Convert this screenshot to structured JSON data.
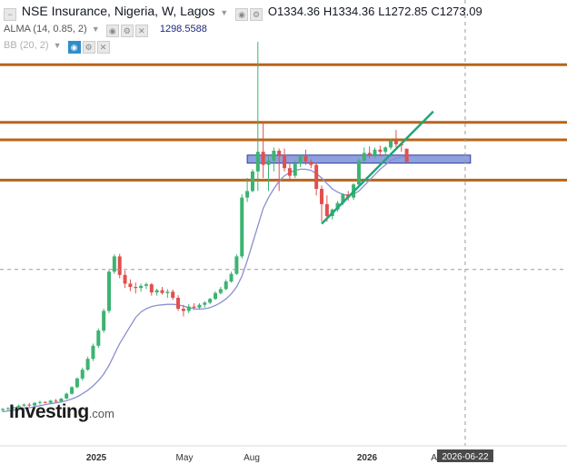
{
  "header": {
    "title": "NSE Insurance, Nigeria, W, Lagos",
    "open": "O1334.36",
    "high": "H1334.36",
    "low": "L1272.85",
    "close": "C1273.09",
    "alma_label": "ALMA (14, 0.85, 2)",
    "alma_value": "1298.5588",
    "bb_label": "BB (20, 2)"
  },
  "watermark": {
    "brand": "Investing",
    "suffix": ".com"
  },
  "colors": {
    "up": "#3cb371",
    "down": "#e0504e",
    "alma": "#8a8fd0",
    "hline": "#b8651a",
    "trend": "#20a67a",
    "zone": "#6b7fd3"
  },
  "chart_data": {
    "type": "candlestick",
    "title": "NSE Insurance, Nigeria, W, Lagos",
    "x_tick_labels": [
      "2025",
      "May",
      "Aug",
      "2026",
      "Apr",
      "2026-06-22"
    ],
    "y_range": [
      100,
      1850
    ],
    "candles": [
      {
        "o": 135,
        "h": 145,
        "l": 125,
        "c": 140
      },
      {
        "o": 140,
        "h": 148,
        "l": 132,
        "c": 144
      },
      {
        "o": 144,
        "h": 152,
        "l": 138,
        "c": 148
      },
      {
        "o": 148,
        "h": 160,
        "l": 143,
        "c": 155
      },
      {
        "o": 155,
        "h": 165,
        "l": 148,
        "c": 160
      },
      {
        "o": 160,
        "h": 168,
        "l": 150,
        "c": 156
      },
      {
        "o": 156,
        "h": 172,
        "l": 152,
        "c": 168
      },
      {
        "o": 168,
        "h": 178,
        "l": 160,
        "c": 172
      },
      {
        "o": 172,
        "h": 176,
        "l": 165,
        "c": 168
      },
      {
        "o": 168,
        "h": 182,
        "l": 164,
        "c": 178
      },
      {
        "o": 178,
        "h": 186,
        "l": 170,
        "c": 175
      },
      {
        "o": 175,
        "h": 190,
        "l": 172,
        "c": 188
      },
      {
        "o": 188,
        "h": 215,
        "l": 185,
        "c": 210
      },
      {
        "o": 210,
        "h": 245,
        "l": 205,
        "c": 240
      },
      {
        "o": 240,
        "h": 285,
        "l": 235,
        "c": 280
      },
      {
        "o": 280,
        "h": 330,
        "l": 270,
        "c": 320
      },
      {
        "o": 320,
        "h": 380,
        "l": 315,
        "c": 370
      },
      {
        "o": 370,
        "h": 440,
        "l": 360,
        "c": 430
      },
      {
        "o": 430,
        "h": 510,
        "l": 420,
        "c": 500
      },
      {
        "o": 500,
        "h": 600,
        "l": 490,
        "c": 590
      },
      {
        "o": 590,
        "h": 780,
        "l": 580,
        "c": 770
      },
      {
        "o": 770,
        "h": 850,
        "l": 760,
        "c": 840
      },
      {
        "o": 840,
        "h": 852,
        "l": 740,
        "c": 755
      },
      {
        "o": 755,
        "h": 775,
        "l": 695,
        "c": 715
      },
      {
        "o": 715,
        "h": 735,
        "l": 680,
        "c": 700
      },
      {
        "o": 700,
        "h": 720,
        "l": 670,
        "c": 695
      },
      {
        "o": 695,
        "h": 715,
        "l": 678,
        "c": 705
      },
      {
        "o": 705,
        "h": 720,
        "l": 690,
        "c": 712
      },
      {
        "o": 712,
        "h": 718,
        "l": 660,
        "c": 675
      },
      {
        "o": 675,
        "h": 692,
        "l": 660,
        "c": 685
      },
      {
        "o": 685,
        "h": 700,
        "l": 665,
        "c": 672
      },
      {
        "o": 672,
        "h": 690,
        "l": 650,
        "c": 678
      },
      {
        "o": 678,
        "h": 688,
        "l": 640,
        "c": 650
      },
      {
        "o": 650,
        "h": 662,
        "l": 590,
        "c": 600
      },
      {
        "o": 600,
        "h": 618,
        "l": 565,
        "c": 590
      },
      {
        "o": 590,
        "h": 622,
        "l": 580,
        "c": 610
      },
      {
        "o": 610,
        "h": 625,
        "l": 595,
        "c": 605
      },
      {
        "o": 605,
        "h": 625,
        "l": 598,
        "c": 618
      },
      {
        "o": 618,
        "h": 635,
        "l": 605,
        "c": 628
      },
      {
        "o": 628,
        "h": 650,
        "l": 620,
        "c": 645
      },
      {
        "o": 645,
        "h": 680,
        "l": 640,
        "c": 672
      },
      {
        "o": 672,
        "h": 700,
        "l": 665,
        "c": 690
      },
      {
        "o": 690,
        "h": 735,
        "l": 685,
        "c": 725
      },
      {
        "o": 725,
        "h": 770,
        "l": 720,
        "c": 760
      },
      {
        "o": 760,
        "h": 850,
        "l": 755,
        "c": 840
      },
      {
        "o": 840,
        "h": 1125,
        "l": 830,
        "c": 1110
      },
      {
        "o": 1110,
        "h": 1200,
        "l": 1090,
        "c": 1140
      },
      {
        "o": 1140,
        "h": 1240,
        "l": 1135,
        "c": 1230
      },
      {
        "o": 1230,
        "h": 1825,
        "l": 1140,
        "c": 1320
      },
      {
        "o": 1320,
        "h": 1460,
        "l": 1200,
        "c": 1260
      },
      {
        "o": 1260,
        "h": 1300,
        "l": 1140,
        "c": 1280
      },
      {
        "o": 1280,
        "h": 1340,
        "l": 1230,
        "c": 1325
      },
      {
        "o": 1325,
        "h": 1335,
        "l": 1140,
        "c": 1300
      },
      {
        "o": 1300,
        "h": 1335,
        "l": 1230,
        "c": 1245
      },
      {
        "o": 1245,
        "h": 1270,
        "l": 1190,
        "c": 1210
      },
      {
        "o": 1210,
        "h": 1280,
        "l": 1200,
        "c": 1265
      },
      {
        "o": 1265,
        "h": 1305,
        "l": 1250,
        "c": 1300
      },
      {
        "o": 1300,
        "h": 1330,
        "l": 1260,
        "c": 1275
      },
      {
        "o": 1275,
        "h": 1285,
        "l": 1245,
        "c": 1260
      },
      {
        "o": 1260,
        "h": 1270,
        "l": 1120,
        "c": 1150
      },
      {
        "o": 1150,
        "h": 1165,
        "l": 1000,
        "c": 1080
      },
      {
        "o": 1080,
        "h": 1120,
        "l": 1000,
        "c": 1025
      },
      {
        "o": 1025,
        "h": 1060,
        "l": 1010,
        "c": 1055
      },
      {
        "o": 1055,
        "h": 1095,
        "l": 1045,
        "c": 1085
      },
      {
        "o": 1085,
        "h": 1130,
        "l": 1075,
        "c": 1125
      },
      {
        "o": 1125,
        "h": 1140,
        "l": 1095,
        "c": 1110
      },
      {
        "o": 1110,
        "h": 1175,
        "l": 1100,
        "c": 1170
      },
      {
        "o": 1170,
        "h": 1290,
        "l": 1165,
        "c": 1280
      },
      {
        "o": 1280,
        "h": 1340,
        "l": 1270,
        "c": 1315
      },
      {
        "o": 1315,
        "h": 1345,
        "l": 1290,
        "c": 1305
      },
      {
        "o": 1305,
        "h": 1340,
        "l": 1290,
        "c": 1330
      },
      {
        "o": 1330,
        "h": 1348,
        "l": 1300,
        "c": 1320
      },
      {
        "o": 1320,
        "h": 1345,
        "l": 1300,
        "c": 1340
      },
      {
        "o": 1340,
        "h": 1380,
        "l": 1330,
        "c": 1370
      },
      {
        "o": 1370,
        "h": 1420,
        "l": 1340,
        "c": 1355
      },
      {
        "o": 1355,
        "h": 1360,
        "l": 1320,
        "c": 1350
      },
      {
        "o": 1334.36,
        "h": 1334.36,
        "l": 1272.85,
        "c": 1273.09
      }
    ],
    "alma": [
      128,
      131,
      134,
      138,
      142,
      146,
      150,
      155,
      160,
      164,
      168,
      172,
      178,
      186,
      196,
      210,
      226,
      246,
      270,
      300,
      340,
      390,
      440,
      480,
      520,
      560,
      585,
      600,
      610,
      615,
      618,
      620,
      620,
      618,
      612,
      605,
      600,
      598,
      600,
      605,
      615,
      628,
      645,
      668,
      700,
      750,
      820,
      900,
      980,
      1060,
      1110,
      1150,
      1185,
      1210,
      1225,
      1235,
      1240,
      1240,
      1235,
      1220,
      1200,
      1175,
      1150,
      1135,
      1125,
      1120,
      1125,
      1140,
      1165,
      1190,
      1215,
      1240,
      1260,
      1280,
      1290,
      1295,
      1298.5588
    ],
    "horizontal_levels": [
      1720,
      1455,
      1375,
      1190
    ],
    "zone": {
      "from_index": 46,
      "to_index": 88,
      "low": 1268,
      "high": 1305
    },
    "trendline": {
      "from_index": 60,
      "from_value": 990,
      "to_index": 81,
      "to_value": 1505
    },
    "dashed_price": 780,
    "dashed_index": 87,
    "grid": false
  }
}
